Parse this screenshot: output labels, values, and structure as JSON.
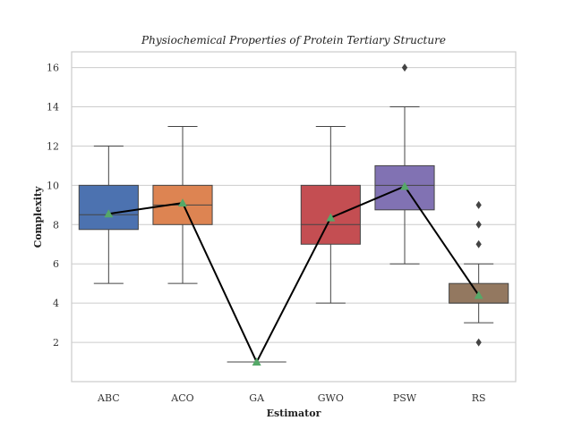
{
  "chart_data": {
    "type": "box",
    "title": "Physiochemical Properties of Protein Tertiary Structure",
    "xlabel": "Estimator",
    "ylabel": "Complexity",
    "ylim": [
      0,
      16.8
    ],
    "yticks": [
      2,
      4,
      6,
      8,
      10,
      12,
      14,
      16
    ],
    "grid": true,
    "categories": [
      "ABC",
      "ACO",
      "GA",
      "GWO",
      "PSW",
      "RS"
    ],
    "colors": [
      "#4c72b0",
      "#dd8452",
      "#55a868",
      "#c44e52",
      "#8172b3",
      "#937860"
    ],
    "boxes": [
      {
        "min": 5,
        "q1": 7.75,
        "median": 8.5,
        "q3": 10,
        "max": 12,
        "outliers": []
      },
      {
        "min": 5,
        "q1": 8,
        "median": 9,
        "q3": 10,
        "max": 13,
        "outliers": []
      },
      {
        "min": 1,
        "q1": 1,
        "median": 1,
        "q3": 1,
        "max": 1,
        "outliers": []
      },
      {
        "min": 4,
        "q1": 7,
        "median": 8,
        "q3": 10,
        "max": 13,
        "outliers": []
      },
      {
        "min": 6,
        "q1": 8.75,
        "median": 10,
        "q3": 11,
        "max": 14,
        "outliers": [
          16
        ]
      },
      {
        "min": 3,
        "q1": 4,
        "median": 4,
        "q3": 5,
        "max": 6,
        "outliers": [
          9,
          8,
          7,
          2
        ]
      }
    ],
    "means": [
      8.55,
      9.1,
      1.0,
      8.35,
      9.95,
      4.4
    ],
    "mean_line_color": "#000000",
    "mean_marker_color": "#55a868"
  }
}
